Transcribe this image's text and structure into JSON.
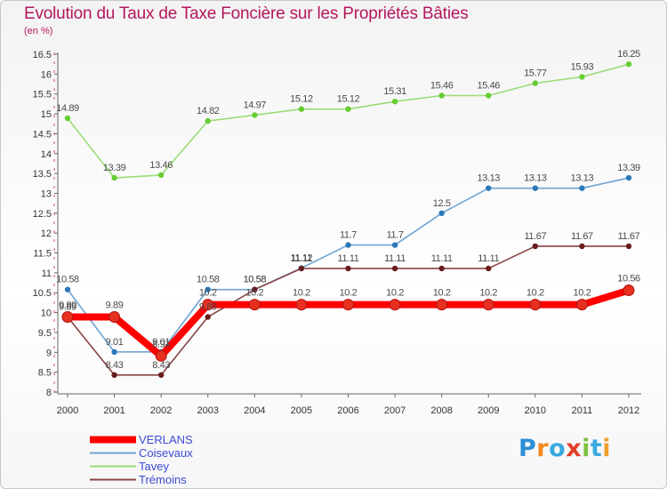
{
  "title": "Evolution du Taux de Taxe Foncière sur les Propriétés Bâties",
  "unit": "(en %)",
  "logo": {
    "letters": [
      "P",
      "r",
      "o",
      "x",
      "i",
      "t",
      "i"
    ],
    "colors": [
      "#2c8fd6",
      "#f28c1e",
      "#3aa9e0",
      "#e0402a",
      "#7fc241",
      "#3aa9e0",
      "#f0a030"
    ]
  },
  "chart_data": {
    "type": "line",
    "title": "Evolution du Taux de Taxe Foncière sur les Propriétés Bâties",
    "ylabel": "(en %)",
    "x": [
      "2000",
      "2001",
      "2002",
      "2003",
      "2004",
      "2005",
      "2006",
      "2007",
      "2008",
      "2009",
      "2010",
      "2011",
      "2012"
    ],
    "ylim": [
      8,
      16.5
    ],
    "yticks": [
      "8",
      "8.5",
      "9",
      "9.5",
      "10",
      "10.5",
      "11",
      "11.5",
      "12",
      "12.5",
      "13",
      "13.5",
      "14",
      "14.5",
      "15",
      "15.5",
      "16",
      "16.5"
    ],
    "series": [
      {
        "name": "VERLANS",
        "color": "#ff0000",
        "dot": "#e83020",
        "thick": true,
        "values": [
          9.89,
          9.89,
          8.91,
          10.2,
          10.2,
          10.2,
          10.2,
          10.2,
          10.2,
          10.2,
          10.2,
          10.2,
          10.56
        ],
        "labels": [
          "9.89",
          "9.89",
          "8.91",
          "10.2",
          "10.2",
          "10.2",
          "10.2",
          "10.2",
          "10.2",
          "10.2",
          "10.2",
          "10.2",
          "10.56"
        ]
      },
      {
        "name": "Coisevaux",
        "color": "#6fa4d4",
        "dot": "#2a78b8",
        "thick": false,
        "values": [
          10.58,
          9.01,
          9.01,
          10.58,
          10.58,
          11.12,
          11.7,
          11.7,
          12.5,
          13.13,
          13.13,
          13.13,
          13.39
        ],
        "labels": [
          "10.58",
          "9.01",
          "9.01",
          "10.58",
          "10.58",
          "11.12",
          "11.7",
          "11.7",
          "12.5",
          "13.13",
          "13.13",
          "13.13",
          "13.39"
        ]
      },
      {
        "name": "Tavey",
        "color": "#99dd77",
        "dot": "#66cc33",
        "thick": false,
        "values": [
          14.89,
          13.39,
          13.46,
          14.82,
          14.97,
          15.12,
          15.12,
          15.31,
          15.46,
          15.46,
          15.77,
          15.93,
          16.25
        ],
        "labels": [
          "14.89",
          "13.39",
          "13.46",
          "14.82",
          "14.97",
          "15.12",
          "15.12",
          "15.31",
          "15.46",
          "15.46",
          "15.77",
          "15.93",
          "16.25"
        ]
      },
      {
        "name": "Trémoins",
        "color": "#884444",
        "dot": "#6a1c1c",
        "thick": false,
        "values": [
          9.89,
          8.43,
          8.43,
          9.89,
          10.58,
          11.11,
          11.11,
          11.11,
          11.11,
          11.11,
          11.67,
          11.67,
          11.67
        ],
        "labels": [
          "9.89",
          "8.43",
          "8.43",
          "9.89",
          "10.58",
          "11.11",
          "11.11",
          "11.11",
          "11.11",
          "11.11",
          "11.67",
          "11.67",
          "11.67"
        ]
      }
    ]
  }
}
